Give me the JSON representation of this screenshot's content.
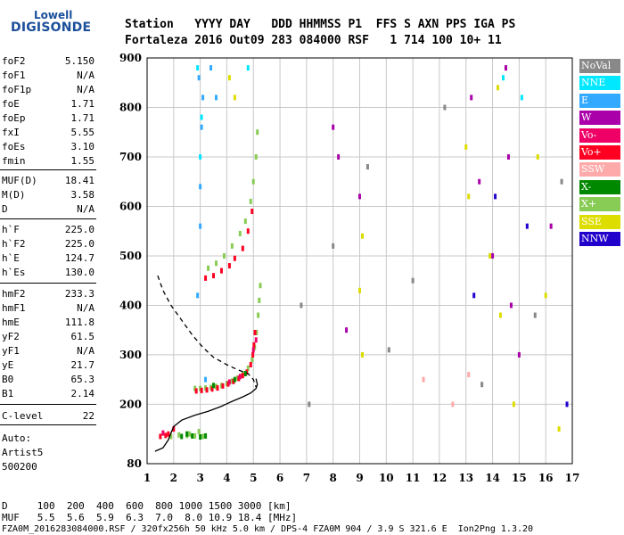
{
  "logo": {
    "top": "Lowell",
    "main": "DIGISONDE"
  },
  "header": {
    "row1": "Station   YYYY DAY   DDD HHMMSS P1  FFS S AXN PPS IGA PS",
    "row2": "Fortaleza 2016 Out09 283 084000 RSF   1 714 100 10+ 11"
  },
  "params": [
    {
      "name": "foF2",
      "value": "5.150"
    },
    {
      "name": "foF1",
      "value": "N/A"
    },
    {
      "name": "foF1p",
      "value": "N/A"
    },
    {
      "name": "foE",
      "value": "1.71"
    },
    {
      "name": "foEp",
      "value": "1.71"
    },
    {
      "name": "fxI",
      "value": "5.55"
    },
    {
      "name": "foEs",
      "value": "3.10"
    },
    {
      "name": "fmin",
      "value": "1.55"
    },
    {
      "name": "MUF(D)",
      "value": "18.41"
    },
    {
      "name": "M(D)",
      "value": "3.58"
    },
    {
      "name": "D",
      "value": "N/A"
    },
    {
      "name": "h`F",
      "value": "225.0"
    },
    {
      "name": "h`F2",
      "value": "225.0"
    },
    {
      "name": "h`E",
      "value": "124.7"
    },
    {
      "name": "h`Es",
      "value": "130.0"
    },
    {
      "name": "hmF2",
      "value": "233.3"
    },
    {
      "name": "hmF1",
      "value": "N/A"
    },
    {
      "name": "hmE",
      "value": "111.8"
    },
    {
      "name": "yF2",
      "value": "61.5"
    },
    {
      "name": "yF1",
      "value": "N/A"
    },
    {
      "name": "yE",
      "value": "21.7"
    },
    {
      "name": "B0",
      "value": "65.3"
    },
    {
      "name": "B1",
      "value": "2.14"
    },
    {
      "name": "C-level",
      "value": "22"
    }
  ],
  "autoscale": {
    "line1": "Auto:",
    "line2": "Artist5",
    "line3": "500200"
  },
  "legend": [
    {
      "label": "NoVal",
      "color": "#888888",
      "text_color": "#ffffff"
    },
    {
      "label": "NNE",
      "color": "#00e8ff",
      "text_color": "#ffffff"
    },
    {
      "label": "E",
      "color": "#33aaff",
      "text_color": "#ffffff"
    },
    {
      "label": "W",
      "color": "#aa00aa",
      "text_color": "#ffffff"
    },
    {
      "label": "Vo-",
      "color": "#ee0066",
      "text_color": "#ffffff"
    },
    {
      "label": "Vo+",
      "color": "#ff0022",
      "text_color": "#ffffff"
    },
    {
      "label": "SSW",
      "color": "#ffaaaa",
      "text_color": "#ffffff"
    },
    {
      "label": "X-",
      "color": "#008800",
      "text_color": "#ffffff"
    },
    {
      "label": "X+",
      "color": "#88cc55",
      "text_color": "#ffffff"
    },
    {
      "label": "SSE",
      "color": "#dddd00",
      "text_color": "#ffffff"
    },
    {
      "label": "NNW",
      "color": "#2200cc",
      "text_color": "#ffffff"
    }
  ],
  "footer": {
    "row1": "D     100  200  400  600  800 1000 1500 3000 [km]",
    "row2": "MUF   5.5  5.6  5.9  6.3  7.0  8.0 10.9 18.4 [MHz]",
    "row3": "FZA0M_2016283084000.RSF / 320fx256h 50 kHz 5.0 km / DPS-4 FZA0M 904 / 3.9 S 321.6 E  Ion2Png 1.3.20"
  },
  "chart_data": {
    "type": "scatter",
    "xlabel": "",
    "ylabel": "",
    "xlim": [
      1,
      17
    ],
    "ylim": [
      80,
      900
    ],
    "x_ticks": [
      1,
      2,
      3,
      4,
      5,
      6,
      7,
      8,
      9,
      10,
      11,
      12,
      13,
      14,
      15,
      16,
      17
    ],
    "y_ticks": [
      200,
      300,
      400,
      500,
      600,
      700,
      800,
      900
    ],
    "y_tick_extra": [
      80
    ],
    "series": [
      {
        "name": "X+",
        "color": "#88cc55",
        "points": [
          [
            2.8,
            232
          ],
          [
            3.0,
            232
          ],
          [
            3.2,
            233
          ],
          [
            3.4,
            234
          ],
          [
            3.6,
            236
          ],
          [
            3.8,
            238
          ],
          [
            4.0,
            242
          ],
          [
            4.2,
            247
          ],
          [
            4.4,
            253
          ],
          [
            4.6,
            262
          ],
          [
            4.8,
            273
          ],
          [
            4.95,
            290
          ],
          [
            5.05,
            315
          ],
          [
            5.12,
            345
          ],
          [
            5.18,
            380
          ],
          [
            5.22,
            410
          ],
          [
            5.26,
            440
          ],
          [
            3.3,
            475
          ],
          [
            3.6,
            485
          ],
          [
            3.9,
            500
          ],
          [
            4.2,
            520
          ],
          [
            4.5,
            545
          ],
          [
            4.7,
            570
          ],
          [
            4.9,
            610
          ],
          [
            5.0,
            650
          ],
          [
            5.1,
            700
          ],
          [
            5.15,
            750
          ],
          [
            1.9,
            135
          ],
          [
            2.2,
            138
          ],
          [
            2.5,
            137
          ],
          [
            2.8,
            136
          ],
          [
            3.1,
            135
          ],
          [
            2.6,
            140
          ],
          [
            2.95,
            145
          ]
        ]
      },
      {
        "name": "Vo+",
        "color": "#ff0022",
        "points": [
          [
            2.85,
            227
          ],
          [
            3.05,
            228
          ],
          [
            3.25,
            229
          ],
          [
            3.45,
            231
          ],
          [
            3.65,
            233
          ],
          [
            3.85,
            237
          ],
          [
            4.05,
            241
          ],
          [
            4.25,
            246
          ],
          [
            4.45,
            252
          ],
          [
            4.6,
            258
          ],
          [
            4.75,
            265
          ],
          [
            4.9,
            280
          ],
          [
            4.98,
            300
          ],
          [
            5.02,
            320
          ],
          [
            5.06,
            345
          ],
          [
            1.5,
            135
          ],
          [
            1.7,
            137
          ],
          [
            1.8,
            140
          ],
          [
            2.0,
            150
          ],
          [
            3.2,
            455
          ],
          [
            3.5,
            460
          ],
          [
            3.8,
            470
          ],
          [
            4.1,
            480
          ],
          [
            4.3,
            495
          ],
          [
            4.6,
            515
          ],
          [
            4.8,
            550
          ],
          [
            4.95,
            590
          ]
        ]
      },
      {
        "name": "X-",
        "color": "#008800",
        "points": [
          [
            2.3,
            135
          ],
          [
            2.7,
            136
          ],
          [
            3.0,
            134
          ],
          [
            3.2,
            136
          ],
          [
            2.5,
            140
          ],
          [
            3.5,
            238
          ],
          [
            4.3,
            250
          ],
          [
            4.7,
            262
          ]
        ]
      },
      {
        "name": "Vo-",
        "color": "#ee0066",
        "points": [
          [
            4.1,
            245
          ],
          [
            4.5,
            256
          ],
          [
            5.0,
            310
          ],
          [
            5.1,
            330
          ],
          [
            1.6,
            142
          ]
        ]
      },
      {
        "name": "E",
        "color": "#33aaff",
        "points": [
          [
            2.9,
            420
          ],
          [
            3.0,
            560
          ],
          [
            3.0,
            640
          ],
          [
            3.05,
            760
          ],
          [
            3.1,
            820
          ],
          [
            2.95,
            860
          ],
          [
            3.4,
            880
          ],
          [
            3.6,
            820
          ],
          [
            3.2,
            250
          ]
        ]
      },
      {
        "name": "NNE",
        "color": "#00e8ff",
        "points": [
          [
            3.0,
            700
          ],
          [
            3.05,
            780
          ],
          [
            2.9,
            880
          ],
          [
            4.8,
            880
          ],
          [
            14.4,
            860
          ],
          [
            15.1,
            820
          ]
        ]
      },
      {
        "name": "W",
        "color": "#aa00aa",
        "points": [
          [
            8.0,
            760
          ],
          [
            8.2,
            700
          ],
          [
            9.0,
            620
          ],
          [
            13.2,
            820
          ],
          [
            13.5,
            650
          ],
          [
            14.0,
            500
          ],
          [
            14.5,
            880
          ],
          [
            14.6,
            700
          ],
          [
            14.7,
            400
          ],
          [
            15.0,
            300
          ],
          [
            16.2,
            560
          ],
          [
            8.5,
            350
          ]
        ]
      },
      {
        "name": "SSE",
        "color": "#dddd00",
        "points": [
          [
            4.1,
            860
          ],
          [
            4.3,
            820
          ],
          [
            9.0,
            430
          ],
          [
            9.1,
            300
          ],
          [
            9.1,
            540
          ],
          [
            13.0,
            720
          ],
          [
            13.1,
            620
          ],
          [
            13.9,
            500
          ],
          [
            14.2,
            840
          ],
          [
            14.3,
            380
          ],
          [
            14.8,
            200
          ],
          [
            15.7,
            700
          ],
          [
            16.0,
            420
          ],
          [
            16.5,
            150
          ]
        ]
      },
      {
        "name": "SSW",
        "color": "#ffaaaa",
        "points": [
          [
            11.4,
            250
          ],
          [
            12.5,
            200
          ],
          [
            13.1,
            260
          ]
        ]
      },
      {
        "name": "NNW",
        "color": "#2200cc",
        "points": [
          [
            13.3,
            420
          ],
          [
            14.1,
            620
          ],
          [
            15.3,
            560
          ],
          [
            16.8,
            200
          ]
        ]
      },
      {
        "name": "NoVal",
        "color": "#888888",
        "points": [
          [
            6.8,
            400
          ],
          [
            7.1,
            200
          ],
          [
            8.0,
            520
          ],
          [
            9.3,
            680
          ],
          [
            10.1,
            310
          ],
          [
            11.0,
            450
          ],
          [
            12.2,
            800
          ],
          [
            13.6,
            240
          ],
          [
            15.6,
            380
          ],
          [
            16.6,
            650
          ]
        ]
      }
    ],
    "curves": [
      {
        "name": "",
        "style": "dashed",
        "color": "#000000",
        "points": [
          [
            1.4,
            460
          ],
          [
            1.6,
            430
          ],
          [
            1.9,
            400
          ],
          [
            2.3,
            370
          ],
          [
            2.7,
            340
          ],
          [
            3.1,
            315
          ],
          [
            3.5,
            295
          ],
          [
            4.0,
            280
          ],
          [
            4.4,
            270
          ],
          [
            4.8,
            262
          ],
          [
            5.0,
            250
          ],
          [
            5.1,
            235
          ]
        ]
      },
      {
        "name": "",
        "style": "solid",
        "color": "#000000",
        "points": [
          [
            1.3,
            105
          ],
          [
            1.6,
            112
          ],
          [
            1.8,
            128
          ],
          [
            1.9,
            142
          ],
          [
            2.0,
            155
          ],
          [
            2.3,
            168
          ],
          [
            2.8,
            178
          ],
          [
            3.3,
            186
          ],
          [
            3.8,
            196
          ],
          [
            4.2,
            206
          ],
          [
            4.6,
            215
          ],
          [
            4.9,
            223
          ],
          [
            5.1,
            232
          ],
          [
            5.15,
            240
          ],
          [
            5.1,
            252
          ]
        ]
      }
    ]
  }
}
